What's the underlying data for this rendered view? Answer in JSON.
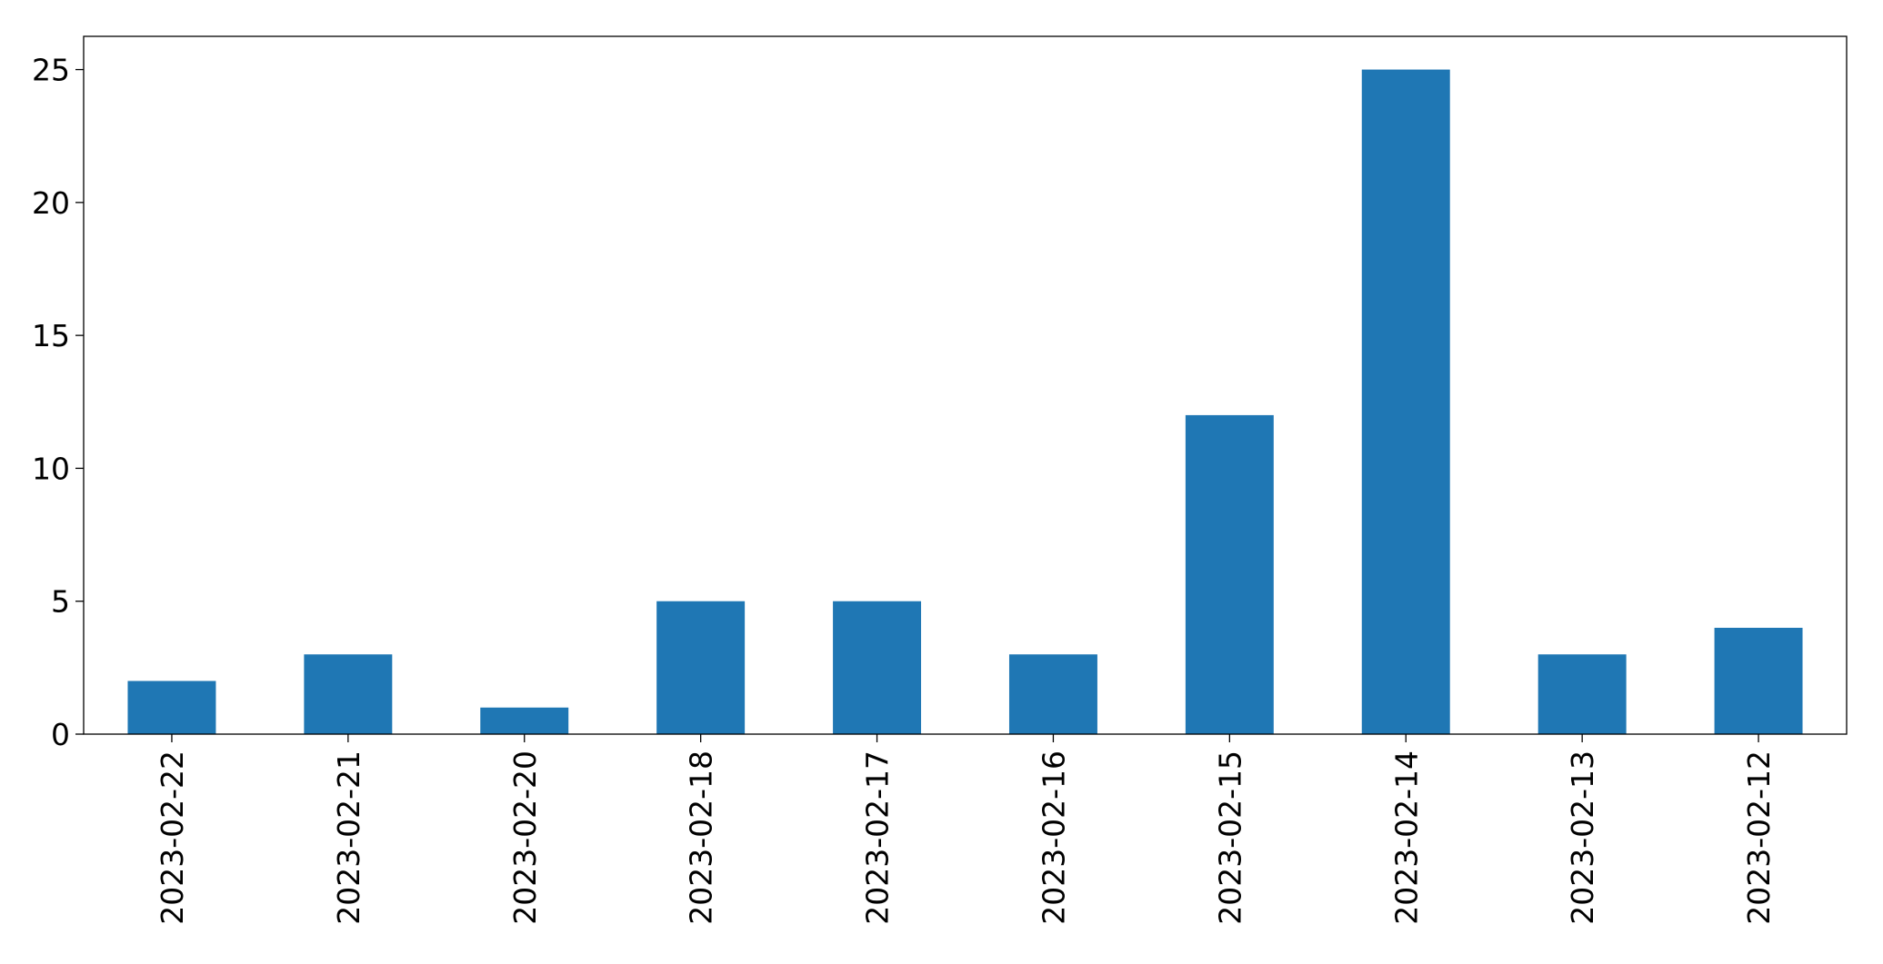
{
  "chart_data": {
    "type": "bar",
    "categories": [
      "2023-02-22",
      "2023-02-21",
      "2023-02-20",
      "2023-02-18",
      "2023-02-17",
      "2023-02-16",
      "2023-02-15",
      "2023-02-14",
      "2023-02-13",
      "2023-02-12"
    ],
    "values": [
      2,
      3,
      1,
      5,
      5,
      3,
      12,
      25,
      3,
      4
    ],
    "color": "#1f77b4",
    "ylim": [
      0,
      26.25
    ],
    "yticks": [
      0,
      5,
      10,
      15,
      20,
      25
    ],
    "grid": false
  }
}
